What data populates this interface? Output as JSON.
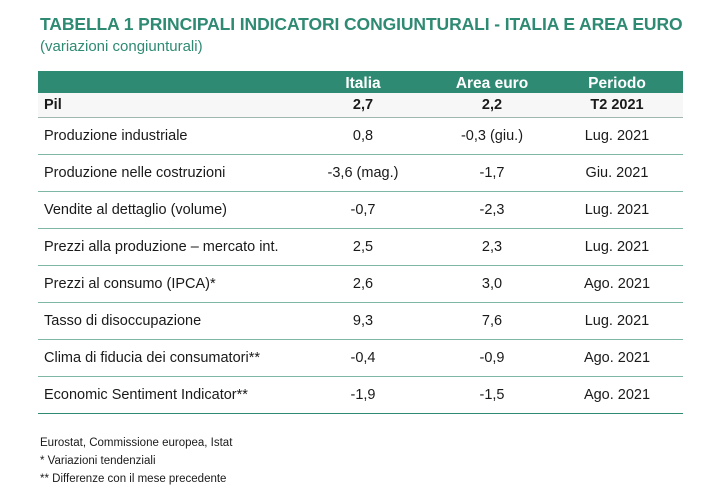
{
  "title": "TABELLA 1  PRINCIPALI INDICATORI CONGIUNTURALI - ITALIA E AREA EURO",
  "subtitle": "(variazioni congiunturali)",
  "colors": {
    "accent": "#2e8a73",
    "header_text": "#ffffff"
  },
  "table": {
    "headers": [
      "",
      "Italia",
      "Area euro",
      "Periodo"
    ],
    "pil": {
      "label": "Pil",
      "italia": "2,7",
      "area_euro": "2,2",
      "periodo": "T2 2021"
    },
    "rows": [
      {
        "label": "Produzione industriale",
        "italia": "0,8",
        "area_euro": "-0,3 (giu.)",
        "periodo": "Lug. 2021"
      },
      {
        "label": "Produzione nelle costruzioni",
        "italia": "-3,6 (mag.)",
        "area_euro": "-1,7",
        "periodo": "Giu. 2021"
      },
      {
        "label": "Vendite al dettaglio (volume)",
        "italia": "-0,7",
        "area_euro": "-2,3",
        "periodo": "Lug. 2021"
      },
      {
        "label": "Prezzi alla produzione – mercato int.",
        "italia": "2,5",
        "area_euro": "2,3",
        "periodo": "Lug. 2021"
      },
      {
        "label": "Prezzi al consumo (IPCA)*",
        "italia": "2,6",
        "area_euro": "3,0",
        "periodo": "Ago. 2021"
      },
      {
        "label": "Tasso di disoccupazione",
        "italia": "9,3",
        "area_euro": "7,6",
        "periodo": "Lug. 2021"
      },
      {
        "label": "Clima di fiducia dei consumatori**",
        "italia": "-0,4",
        "area_euro": "-0,9",
        "periodo": "Ago. 2021"
      },
      {
        "label": "Economic Sentiment Indicator**",
        "italia": "-1,9",
        "area_euro": "-1,5",
        "periodo": "Ago. 2021"
      }
    ]
  },
  "notes": {
    "source": "Eurostat, Commissione europea, Istat",
    "note1": "* Variazioni tendenziali",
    "note2": "** Differenze con il mese precedente"
  }
}
